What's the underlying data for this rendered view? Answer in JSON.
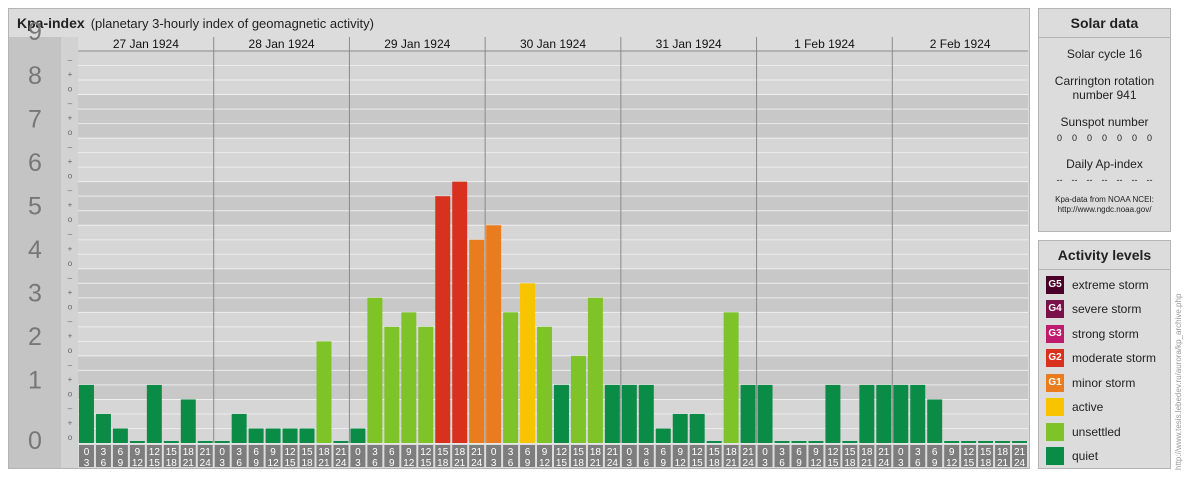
{
  "header": {
    "title": "Kpa-index",
    "subtitle": "(planetary 3-hourly index of geomagnetic activity)"
  },
  "chart_data": {
    "type": "bar",
    "y_ticks": [
      "0",
      "1",
      "2",
      "3",
      "4",
      "5",
      "6",
      "7",
      "8",
      "9"
    ],
    "ylim": [
      0,
      9
    ],
    "days": [
      "27 Jan 1924",
      "28 Jan 1924",
      "29 Jan 1924",
      "30 Jan 1924",
      "31 Jan 1924",
      "1 Feb 1924",
      "2 Feb 1924"
    ],
    "hour_labels": [
      [
        "0",
        "3"
      ],
      [
        "3",
        "6"
      ],
      [
        "6",
        "9"
      ],
      [
        "9",
        "12"
      ],
      [
        "12",
        "15"
      ],
      [
        "15",
        "18"
      ],
      [
        "18",
        "21"
      ],
      [
        "21",
        "24"
      ]
    ],
    "values": [
      1.333,
      0.667,
      0.333,
      0,
      1.333,
      0,
      1,
      0,
      0,
      0.667,
      0.333,
      0.333,
      0.333,
      0.333,
      2.333,
      0,
      0.333,
      3.333,
      2.667,
      3,
      2.667,
      5.667,
      6,
      4.667,
      5,
      3,
      3.667,
      2.667,
      1.333,
      2,
      3.333,
      1.333,
      1.333,
      1.333,
      0.333,
      0.667,
      0.667,
      0,
      3,
      1.333,
      1.333,
      0,
      0,
      0,
      1.333,
      0,
      1.333,
      1.333,
      1.333,
      1.333,
      1,
      0,
      0,
      0,
      0,
      0
    ],
    "categories": [
      "quiet",
      "quiet",
      "quiet",
      "quiet",
      "quiet",
      "quiet",
      "quiet",
      "quiet",
      "quiet",
      "quiet",
      "quiet",
      "quiet",
      "quiet",
      "quiet",
      "unsettled",
      "quiet",
      "quiet",
      "unsettled",
      "unsettled",
      "unsettled",
      "unsettled",
      "moderate",
      "moderate",
      "minor",
      "minor",
      "unsettled",
      "active",
      "unsettled",
      "quiet",
      "unsettled",
      "unsettled",
      "quiet",
      "quiet",
      "quiet",
      "quiet",
      "quiet",
      "quiet",
      "quiet",
      "unsettled",
      "quiet",
      "quiet",
      "quiet",
      "quiet",
      "quiet",
      "quiet",
      "quiet",
      "quiet",
      "quiet",
      "quiet",
      "quiet",
      "quiet",
      "quiet",
      "quiet",
      "quiet",
      "quiet",
      "quiet"
    ],
    "colors": {
      "quiet": "#0a8c46",
      "unsettled": "#7ec428",
      "active": "#f8c400",
      "minor": "#e87c1e",
      "moderate": "#d8321e",
      "strong": "#be1a6e",
      "severe": "#7a104a",
      "extreme": "#4a0028"
    }
  },
  "solar": {
    "title": "Solar data",
    "cycle": "Solar cycle 16",
    "carrington": "Carrington rotation number 941",
    "sunspot_label": "Sunspot number",
    "sunspots": [
      "0",
      "0",
      "0",
      "0",
      "0",
      "0",
      "0"
    ],
    "ap_label": "Daily Ap-index",
    "ap": [
      "--",
      "--",
      "--",
      "--",
      "--",
      "--",
      "--"
    ],
    "credit_1": "Kpa-data from NOAA NCEI:",
    "credit_2": "http://www.ngdc.noaa.gov/"
  },
  "activity": {
    "title": "Activity levels",
    "levels": [
      {
        "badge": "G5",
        "label": "extreme storm",
        "color": "#4a0028"
      },
      {
        "badge": "G4",
        "label": "severe storm",
        "color": "#7a104a"
      },
      {
        "badge": "G3",
        "label": "strong storm",
        "color": "#be1a6e"
      },
      {
        "badge": "G2",
        "label": "moderate storm",
        "color": "#d8321e"
      },
      {
        "badge": "G1",
        "label": "minor storm",
        "color": "#e87c1e"
      },
      {
        "badge": "",
        "label": "active",
        "color": "#f8c400"
      },
      {
        "badge": "",
        "label": "unsettled",
        "color": "#7ec428"
      },
      {
        "badge": "",
        "label": "quiet",
        "color": "#0a8c46"
      }
    ]
  },
  "side_url": "http://www.tesis.lebedev.ru/aurora/kp_archive.php"
}
